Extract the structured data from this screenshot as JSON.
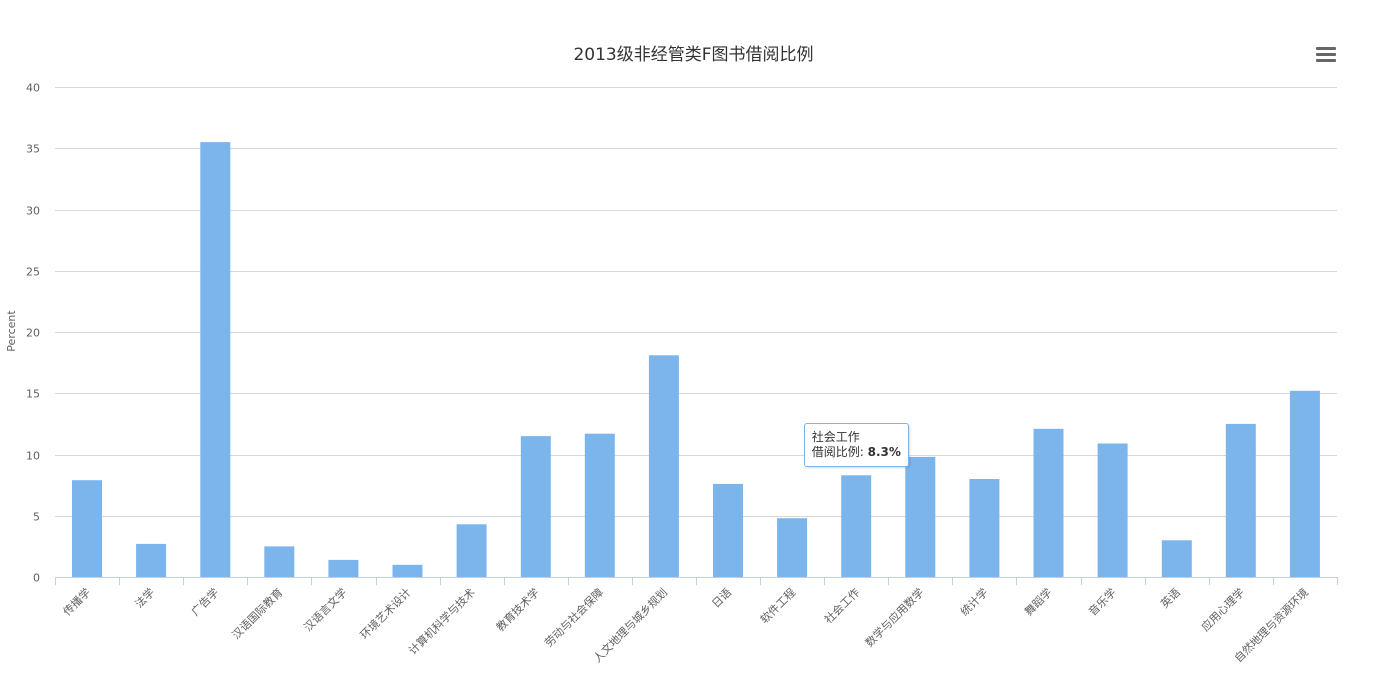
{
  "chart_data": {
    "type": "bar",
    "title": "2013级非经管类F图书借阅比例",
    "xlabel": "",
    "ylabel": "Percent",
    "ylim": [
      0,
      40
    ],
    "yticks": [
      0,
      5,
      10,
      15,
      20,
      25,
      30,
      35,
      40
    ],
    "grid": true,
    "legend": "none",
    "color": "#7cb5ec",
    "categories": [
      "传播学",
      "法学",
      "广告学",
      "汉语国际教育",
      "汉语言文学",
      "环境艺术设计",
      "计算机科学与技术",
      "教育技术学",
      "劳动与社会保障",
      "人文地理与城乡规划",
      "日语",
      "软件工程",
      "社会工作",
      "数学与应用数学",
      "统计学",
      "舞蹈学",
      "音乐学",
      "英语",
      "应用心理学",
      "自然地理与资源环境"
    ],
    "values": [
      7.9,
      2.7,
      35.5,
      2.5,
      1.4,
      1.0,
      4.3,
      11.5,
      11.7,
      18.1,
      7.6,
      4.8,
      8.3,
      9.8,
      8.0,
      12.1,
      10.9,
      3.0,
      12.5,
      15.2
    ]
  },
  "tooltip": {
    "category": "社会工作",
    "series_label": "借阅比例",
    "value_text": "8.3%"
  },
  "menu": {
    "icon": "hamburger-menu-icon"
  }
}
